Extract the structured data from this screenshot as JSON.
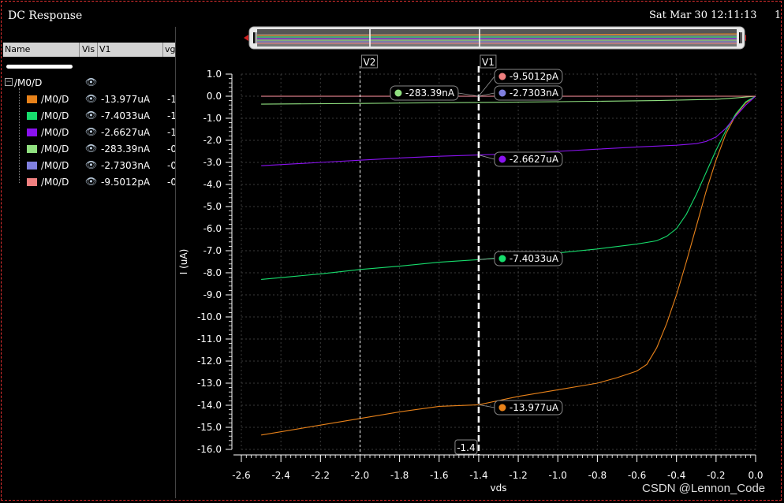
{
  "window": {
    "title": "DC Response",
    "datetime": "Sat Mar 30 12:11:13",
    "datetime_suffix": "1",
    "watermark": "CSDN @Lennon_Code"
  },
  "panel": {
    "columns": [
      "Name",
      "Vis",
      "V1",
      "vg"
    ],
    "root": "/M0/D",
    "rows": [
      {
        "name": "/M0/D",
        "v1": "-13.977uA",
        "vg": "-1",
        "color": "#e8821a"
      },
      {
        "name": "/M0/D",
        "v1": "-7.4033uA",
        "vg": "-1",
        "color": "#17dc6c"
      },
      {
        "name": "/M0/D",
        "v1": "-2.6627uA",
        "vg": "-1",
        "color": "#8a12f0"
      },
      {
        "name": "/M0/D",
        "v1": "-283.39nA",
        "vg": "-0",
        "color": "#90e080"
      },
      {
        "name": "/M0/D",
        "v1": "-2.7303nA",
        "vg": "-0",
        "color": "#8080e0"
      },
      {
        "name": "/M0/D",
        "v1": "-9.5012pA",
        "vg": "-0",
        "color": "#f08080"
      }
    ]
  },
  "chart_data": {
    "type": "line",
    "xlabel": "vds",
    "ylabel": "I (uA)",
    "xlim": [
      -2.6,
      0.0
    ],
    "ylim": [
      -16.0,
      1.0
    ],
    "xticks": [
      "-2.6",
      "-2.4",
      "-2.2",
      "-2.0",
      "-1.8",
      "-1.6",
      "-1.4",
      "-1.2",
      "-1.0",
      "-0.8",
      "-0.6",
      "-0.4",
      "-0.2",
      "0.0"
    ],
    "yticks": [
      "1.0",
      "0.0",
      "-1.0",
      "-2.0",
      "-3.0",
      "-4.0",
      "-5.0",
      "-6.0",
      "-7.0",
      "-8.0",
      "-9.0",
      "-10.0",
      "-11.0",
      "-12.0",
      "-13.0",
      "-14.0",
      "-15.0",
      "-16.0"
    ],
    "grid": true,
    "markers": [
      {
        "name": "V1",
        "x": -1.4,
        "readout": "-1.4"
      },
      {
        "name": "V2",
        "x": -2.0
      }
    ],
    "series": [
      {
        "color": "#e8821a",
        "label": "-13.977uA",
        "points": [
          [
            -2.5,
            -15.35
          ],
          [
            -2.2,
            -14.9
          ],
          [
            -2.0,
            -14.6
          ],
          [
            -1.8,
            -14.3
          ],
          [
            -1.6,
            -14.05
          ],
          [
            -1.4,
            -13.977
          ],
          [
            -1.2,
            -13.6
          ],
          [
            -1.0,
            -13.3
          ],
          [
            -0.8,
            -13.0
          ],
          [
            -0.7,
            -12.75
          ],
          [
            -0.6,
            -12.45
          ],
          [
            -0.55,
            -12.15
          ],
          [
            -0.5,
            -11.4
          ],
          [
            -0.45,
            -10.3
          ],
          [
            -0.4,
            -9.0
          ],
          [
            -0.35,
            -7.5
          ],
          [
            -0.3,
            -5.9
          ],
          [
            -0.25,
            -4.3
          ],
          [
            -0.2,
            -2.9
          ],
          [
            -0.15,
            -1.7
          ],
          [
            -0.1,
            -0.85
          ],
          [
            -0.05,
            -0.3
          ],
          [
            0.0,
            0.0
          ]
        ]
      },
      {
        "color": "#17dc6c",
        "label": "-7.4033uA",
        "points": [
          [
            -2.5,
            -8.3
          ],
          [
            -2.2,
            -8.05
          ],
          [
            -2.0,
            -7.85
          ],
          [
            -1.8,
            -7.7
          ],
          [
            -1.6,
            -7.52
          ],
          [
            -1.4,
            -7.4033
          ],
          [
            -1.2,
            -7.25
          ],
          [
            -1.0,
            -7.1
          ],
          [
            -0.8,
            -6.92
          ],
          [
            -0.6,
            -6.7
          ],
          [
            -0.5,
            -6.55
          ],
          [
            -0.45,
            -6.35
          ],
          [
            -0.4,
            -6.0
          ],
          [
            -0.35,
            -5.35
          ],
          [
            -0.3,
            -4.45
          ],
          [
            -0.25,
            -3.45
          ],
          [
            -0.2,
            -2.45
          ],
          [
            -0.15,
            -1.55
          ],
          [
            -0.1,
            -0.8
          ],
          [
            -0.05,
            -0.25
          ],
          [
            0.0,
            0.0
          ]
        ]
      },
      {
        "color": "#8a12f0",
        "label": "-2.6627uA",
        "points": [
          [
            -2.5,
            -3.15
          ],
          [
            -2.2,
            -3.0
          ],
          [
            -2.0,
            -2.9
          ],
          [
            -1.8,
            -2.8
          ],
          [
            -1.6,
            -2.72
          ],
          [
            -1.4,
            -2.6627
          ],
          [
            -1.2,
            -2.6
          ],
          [
            -1.0,
            -2.5
          ],
          [
            -0.8,
            -2.4
          ],
          [
            -0.6,
            -2.3
          ],
          [
            -0.4,
            -2.22
          ],
          [
            -0.3,
            -2.15
          ],
          [
            -0.25,
            -2.05
          ],
          [
            -0.2,
            -1.85
          ],
          [
            -0.15,
            -1.45
          ],
          [
            -0.1,
            -0.9
          ],
          [
            -0.05,
            -0.4
          ],
          [
            0.0,
            0.0
          ]
        ]
      },
      {
        "color": "#90e080",
        "label": "-283.39nA",
        "points": [
          [
            -2.5,
            -0.36
          ],
          [
            -2.0,
            -0.33
          ],
          [
            -1.4,
            -0.28339
          ],
          [
            -1.0,
            -0.25
          ],
          [
            -0.5,
            -0.2
          ],
          [
            -0.2,
            -0.14
          ],
          [
            -0.1,
            -0.08
          ],
          [
            0.0,
            0.0
          ]
        ]
      },
      {
        "color": "#8080e0",
        "label": "-2.7303nA",
        "points": [
          [
            -2.5,
            -0.003
          ],
          [
            -1.4,
            -0.0027
          ],
          [
            0.0,
            0.0
          ]
        ]
      },
      {
        "color": "#f08080",
        "label": "-9.5012pA",
        "points": [
          [
            -2.5,
            0.0
          ],
          [
            -1.4,
            0.0
          ],
          [
            0.0,
            0.0
          ]
        ]
      }
    ],
    "markers_readouts": [
      {
        "text": "-9.5012pA",
        "color": "#f08080",
        "y": 1.0
      },
      {
        "text": "-2.7303nA",
        "color": "#8080e0",
        "y": 0.0
      },
      {
        "text": "-283.39nA",
        "color": "#90e080",
        "y": 0.0,
        "side": "left"
      },
      {
        "text": "-2.6627uA",
        "color": "#8a12f0",
        "y": -2.6627
      },
      {
        "text": "-7.4033uA",
        "color": "#17dc6c",
        "y": -7.4033
      },
      {
        "text": "-13.977uA",
        "color": "#e8821a",
        "y": -13.977
      }
    ]
  }
}
